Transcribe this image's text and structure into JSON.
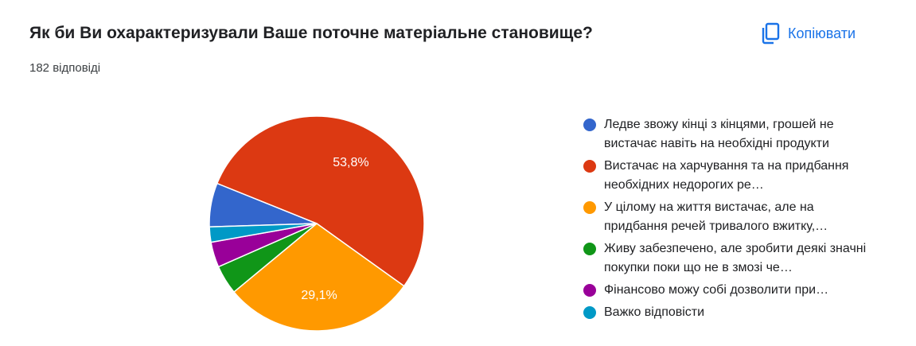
{
  "header": {
    "title": "Як би Ви охарактеризували Ваше поточне матеріальне становище?",
    "response_count": "182 відповіді",
    "copy_label": "Копіювати",
    "copy_icon": "copy-icon"
  },
  "colors": {
    "accent": "#1a73e8"
  },
  "chart_data": {
    "type": "pie",
    "title": "",
    "legend_position": "right",
    "slices": [
      {
        "label": "Ледве звожу кінці з кінцями, грошей не вистачає навіть на необхідні продукти",
        "value": 6.6,
        "color": "#3366cc",
        "data_label": ""
      },
      {
        "label": "Вистачає на харчування та на придбання необхідних недорогих ре…",
        "value": 53.8,
        "color": "#dc3912",
        "data_label": "53,8%"
      },
      {
        "label": "У цілому на життя вистачає, але на придбання речей тривалого вжитку,…",
        "value": 29.1,
        "color": "#ff9900",
        "data_label": "29,1%"
      },
      {
        "label": "Живу забезпечено, але зробити деякі значні покупки поки що не в змозі че…",
        "value": 4.4,
        "color": "#109618",
        "data_label": ""
      },
      {
        "label": "Фінансово можу собі дозволити при…",
        "value": 3.8,
        "color": "#990099",
        "data_label": ""
      },
      {
        "label": "Важко відповісти",
        "value": 2.3,
        "color": "#0099c6",
        "data_label": ""
      }
    ]
  }
}
